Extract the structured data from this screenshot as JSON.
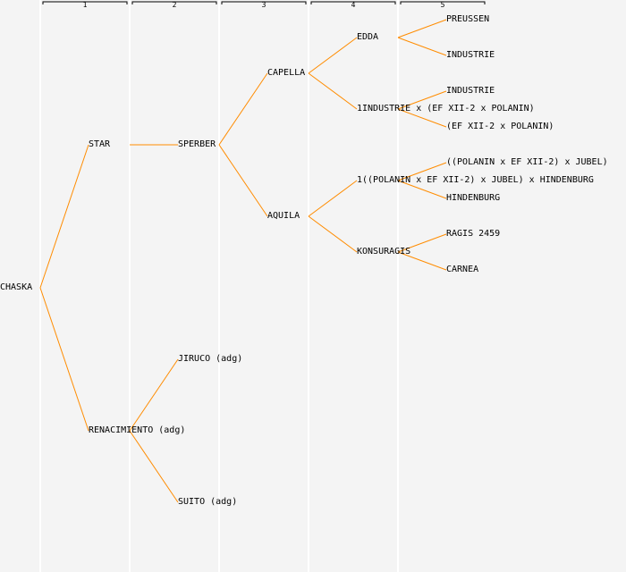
{
  "colors": {
    "line": "#ff8c00",
    "background": "#f4f4f4",
    "column_divider": "#ffffff"
  },
  "generation_headers": [
    "1",
    "2",
    "3",
    "4",
    "5"
  ],
  "tree": {
    "name": "CHASKA",
    "children": [
      {
        "name": "STAR",
        "children": [
          {
            "name": "SPERBER",
            "children": [
              {
                "name": "CAPELLA",
                "children": [
                  {
                    "name": "EDDA",
                    "children": [
                      {
                        "name": "PREUSSEN"
                      },
                      {
                        "name": "INDUSTRIE"
                      }
                    ]
                  },
                  {
                    "name": "1INDUSTRIE x (EF XII-2 x POLANIN)",
                    "children": [
                      {
                        "name": "INDUSTRIE"
                      },
                      {
                        "name": "(EF XII-2 x POLANIN)"
                      }
                    ]
                  }
                ]
              },
              {
                "name": "AQUILA",
                "children": [
                  {
                    "name": "1((POLANIN x EF XII-2) x JUBEL) x HINDENBURG",
                    "children": [
                      {
                        "name": "((POLANIN x EF XII-2) x JUBEL)"
                      },
                      {
                        "name": "HINDENBURG"
                      }
                    ]
                  },
                  {
                    "name": "KONSURAGIS",
                    "children": [
                      {
                        "name": "RAGIS 2459"
                      },
                      {
                        "name": "CARNEA"
                      }
                    ]
                  }
                ]
              }
            ]
          }
        ]
      },
      {
        "name": "RENACIMIENTO (adg)",
        "children": [
          {
            "name": "JIRUCO (adg)"
          },
          {
            "name": "SUITO (adg)"
          }
        ]
      }
    ]
  }
}
